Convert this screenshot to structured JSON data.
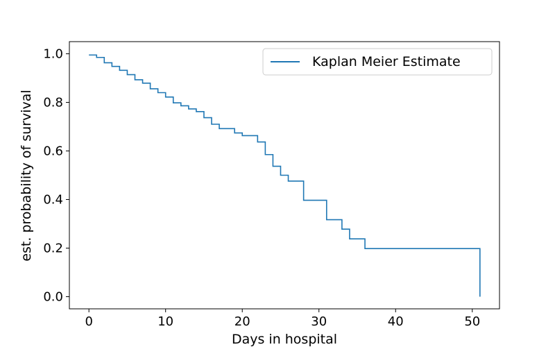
{
  "chart_data": {
    "type": "line",
    "step": true,
    "xlabel": "Days in hospital",
    "ylabel": "est. probability of survival",
    "xlim": [
      -2.55,
      53.55
    ],
    "ylim": [
      -0.05,
      1.05
    ],
    "xticks": [
      0,
      10,
      20,
      30,
      40,
      50
    ],
    "xtick_labels": [
      "0",
      "10",
      "20",
      "30",
      "40",
      "50"
    ],
    "yticks": [
      0.0,
      0.2,
      0.4,
      0.6,
      0.8,
      1.0
    ],
    "ytick_labels": [
      "0.0",
      "0.2",
      "0.4",
      "0.6",
      "0.8",
      "1.0"
    ],
    "grid": false,
    "legend_position": "top-right",
    "series": [
      {
        "name": "Kaplan Meier Estimate",
        "color": "#1f77b4",
        "x": [
          0,
          1,
          2,
          3,
          4,
          5,
          6,
          7,
          8,
          9,
          10,
          11,
          12,
          13,
          14,
          15,
          16,
          17,
          19,
          20,
          22,
          23,
          24,
          25,
          26,
          28,
          31,
          33,
          34,
          36,
          51
        ],
        "y": [
          0.995,
          0.985,
          0.963,
          0.948,
          0.932,
          0.914,
          0.893,
          0.879,
          0.856,
          0.84,
          0.822,
          0.798,
          0.786,
          0.773,
          0.762,
          0.737,
          0.71,
          0.692,
          0.674,
          0.663,
          0.637,
          0.585,
          0.537,
          0.5,
          0.476,
          0.397,
          0.317,
          0.278,
          0.238,
          0.198,
          0.0
        ]
      }
    ]
  }
}
